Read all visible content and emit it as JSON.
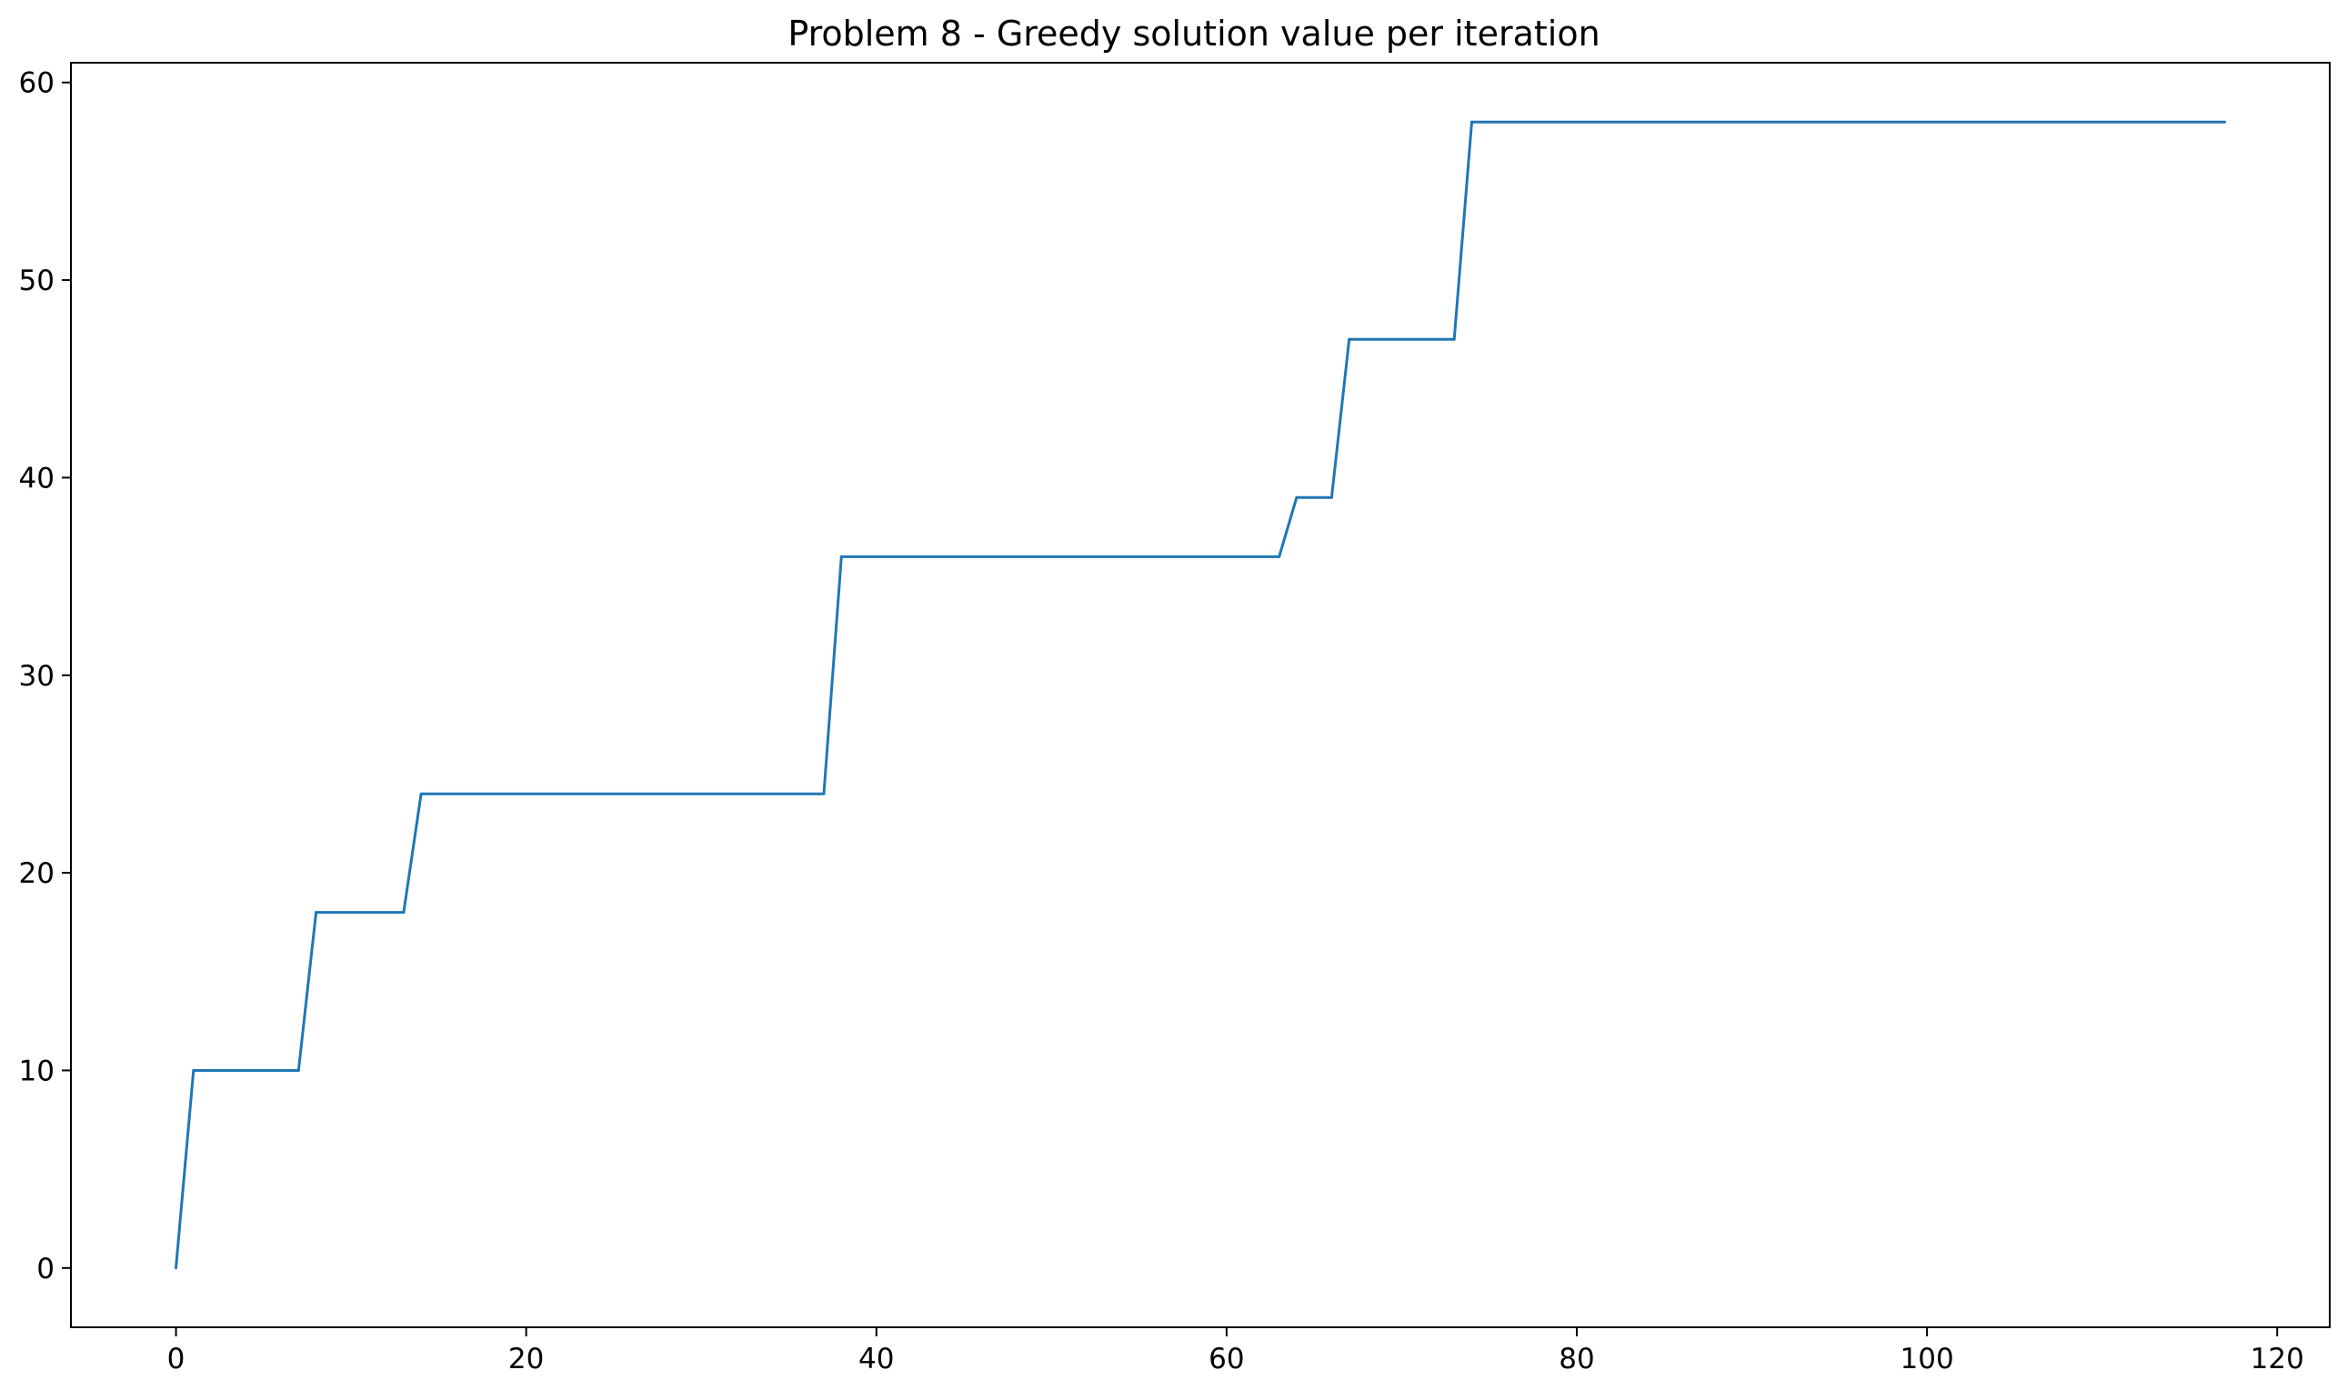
{
  "chart_data": {
    "type": "line",
    "title": "Problem 8 - Greedy solution value per iteration",
    "xlabel": "",
    "ylabel": "",
    "xlim": [
      -6,
      123
    ],
    "ylim": [
      -3,
      61
    ],
    "xticks": [
      0,
      20,
      40,
      60,
      80,
      100,
      120
    ],
    "yticks": [
      0,
      10,
      20,
      30,
      40,
      50,
      60
    ],
    "grid": false,
    "legend": "none",
    "series": [
      {
        "color": "#1f77b4",
        "points": [
          [
            0,
            0
          ],
          [
            1,
            10
          ],
          [
            7,
            10
          ],
          [
            8,
            18
          ],
          [
            13,
            18
          ],
          [
            14,
            24
          ],
          [
            37,
            24
          ],
          [
            38,
            36
          ],
          [
            63,
            36
          ],
          [
            64,
            39
          ],
          [
            66,
            39
          ],
          [
            67,
            47
          ],
          [
            73,
            47
          ],
          [
            74,
            58
          ],
          [
            117,
            58
          ]
        ]
      }
    ]
  }
}
